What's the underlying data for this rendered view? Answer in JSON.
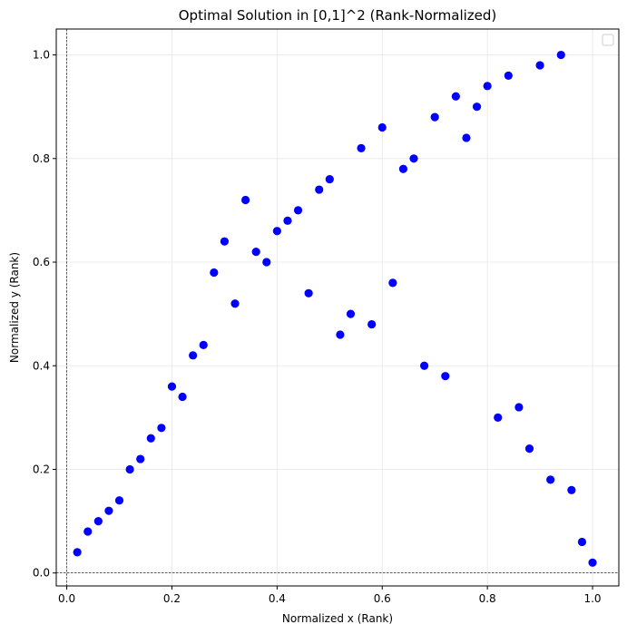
{
  "chart_data": {
    "type": "scatter",
    "title": "Optimal Solution in [0,1]^2 (Rank-Normalized)",
    "xlabel": "Normalized x (Rank)",
    "ylabel": "Normalized y (Rank)",
    "xlim": [
      -0.02,
      1.05
    ],
    "ylim": [
      -0.025,
      1.05
    ],
    "xticks": [
      0.0,
      0.2,
      0.4,
      0.6,
      0.8,
      1.0
    ],
    "yticks": [
      0.0,
      0.2,
      0.4,
      0.6,
      0.8,
      1.0
    ],
    "xtick_labels": [
      "0.0",
      "0.2",
      "0.4",
      "0.6",
      "0.8",
      "1.0"
    ],
    "ytick_labels": [
      "0.0",
      "0.2",
      "0.4",
      "0.6",
      "0.8",
      "1.0"
    ],
    "grid": true,
    "legend": "top-right (empty)",
    "reference_lines": {
      "x": 0,
      "y": 0,
      "style": "dashed"
    },
    "marker_color": "#0000ff",
    "points": [
      [
        0.02,
        0.04
      ],
      [
        0.04,
        0.08
      ],
      [
        0.06,
        0.1
      ],
      [
        0.08,
        0.12
      ],
      [
        0.1,
        0.14
      ],
      [
        0.12,
        0.2
      ],
      [
        0.14,
        0.22
      ],
      [
        0.16,
        0.26
      ],
      [
        0.18,
        0.28
      ],
      [
        0.2,
        0.36
      ],
      [
        0.22,
        0.34
      ],
      [
        0.24,
        0.42
      ],
      [
        0.26,
        0.44
      ],
      [
        0.28,
        0.58
      ],
      [
        0.3,
        0.64
      ],
      [
        0.32,
        0.52
      ],
      [
        0.34,
        0.72
      ],
      [
        0.36,
        0.62
      ],
      [
        0.38,
        0.6
      ],
      [
        0.4,
        0.66
      ],
      [
        0.42,
        0.68
      ],
      [
        0.44,
        0.7
      ],
      [
        0.46,
        0.54
      ],
      [
        0.48,
        0.74
      ],
      [
        0.5,
        0.76
      ],
      [
        0.52,
        0.46
      ],
      [
        0.54,
        0.5
      ],
      [
        0.56,
        0.82
      ],
      [
        0.58,
        0.48
      ],
      [
        0.6,
        0.86
      ],
      [
        0.62,
        0.56
      ],
      [
        0.64,
        0.78
      ],
      [
        0.66,
        0.8
      ],
      [
        0.68,
        0.4
      ],
      [
        0.7,
        0.88
      ],
      [
        0.72,
        0.38
      ],
      [
        0.74,
        0.92
      ],
      [
        0.76,
        0.84
      ],
      [
        0.78,
        0.9
      ],
      [
        0.8,
        0.94
      ],
      [
        0.82,
        0.3
      ],
      [
        0.84,
        0.96
      ],
      [
        0.86,
        0.32
      ],
      [
        0.88,
        0.24
      ],
      [
        0.9,
        0.98
      ],
      [
        0.92,
        0.18
      ],
      [
        0.94,
        1.0
      ],
      [
        0.96,
        0.16
      ],
      [
        0.98,
        0.06
      ],
      [
        1.0,
        0.02
      ]
    ]
  }
}
